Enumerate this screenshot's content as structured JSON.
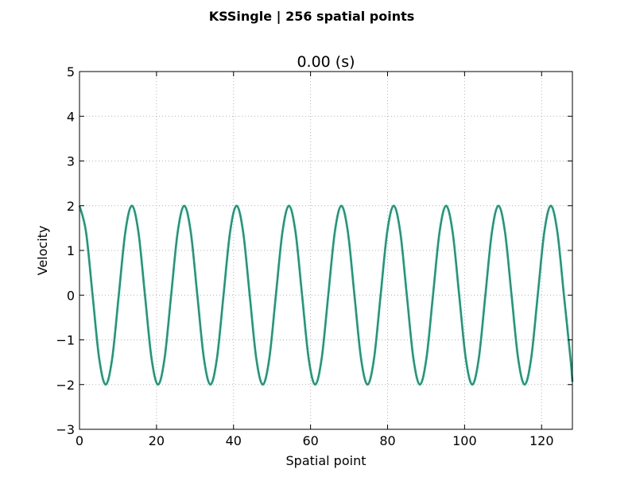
{
  "figure": {
    "suptitle": "KSSingle | 256 spatial points"
  },
  "chart_data": {
    "type": "line",
    "title": "0.00 (s)",
    "xlabel": "Spatial point",
    "ylabel": "Velocity",
    "xlim": [
      0,
      128
    ],
    "ylim": [
      -3,
      5
    ],
    "xticks": [
      0,
      20,
      40,
      60,
      80,
      100,
      120
    ],
    "yticks": [
      -3,
      -2,
      -1,
      0,
      1,
      2,
      3,
      4,
      5
    ],
    "xtick_labels": [
      "0",
      "20",
      "40",
      "60",
      "80",
      "100",
      "120"
    ],
    "ytick_labels": [
      "−3",
      "−2",
      "−1",
      "0",
      "1",
      "2",
      "3",
      "4",
      "5"
    ],
    "grid": true,
    "series": [
      {
        "color": "#1a9a78",
        "x": [
          0,
          1.7,
          3.4,
          5.1,
          6.8,
          8.5,
          10.2,
          11.9,
          13.6,
          15.3,
          17.0,
          18.7,
          20.4,
          22.1,
          23.8,
          25.5,
          27.2,
          28.9,
          30.6,
          32.3,
          34.0,
          35.7,
          37.4,
          39.1,
          40.8,
          42.5,
          44.2,
          45.9,
          47.6,
          49.3,
          51.0,
          52.7,
          54.4,
          56.1,
          57.8,
          59.5,
          61.2,
          62.9,
          64.6,
          66.3,
          68.0,
          69.7,
          71.4,
          73.1,
          74.8,
          76.5,
          78.2,
          79.9,
          81.6,
          83.3,
          85.0,
          86.7,
          88.4,
          90.1,
          91.8,
          93.5,
          95.2,
          96.9,
          98.6,
          100.3,
          102.0,
          103.7,
          105.4,
          107.1,
          108.8,
          110.5,
          112.2,
          113.9,
          115.6,
          117.3,
          119.0,
          120.7,
          122.4,
          124.1,
          125.8,
          127.5,
          128.0
        ],
        "y": [
          2.0,
          1.41,
          0.0,
          -1.41,
          -2.0,
          -1.41,
          0.0,
          1.41,
          2.0,
          1.41,
          0.0,
          -1.41,
          -2.0,
          -1.41,
          0.0,
          1.41,
          2.0,
          1.41,
          0.0,
          -1.41,
          -2.0,
          -1.41,
          0.0,
          1.41,
          2.0,
          1.41,
          0.0,
          -1.41,
          -2.0,
          -1.41,
          0.0,
          1.41,
          2.0,
          1.41,
          0.0,
          -1.41,
          -2.0,
          -1.41,
          0.0,
          1.41,
          2.0,
          1.41,
          0.0,
          -1.41,
          -2.0,
          -1.41,
          0.0,
          1.41,
          2.0,
          1.41,
          0.0,
          -1.41,
          -2.0,
          -1.41,
          0.0,
          1.41,
          2.0,
          1.41,
          0.0,
          -1.41,
          -2.0,
          -1.41,
          0.0,
          1.41,
          2.0,
          1.41,
          0.0,
          -1.41,
          -2.0,
          -1.41,
          0.0,
          1.41,
          2.0,
          1.41,
          0.0,
          -1.41,
          -1.94
        ]
      }
    ]
  }
}
